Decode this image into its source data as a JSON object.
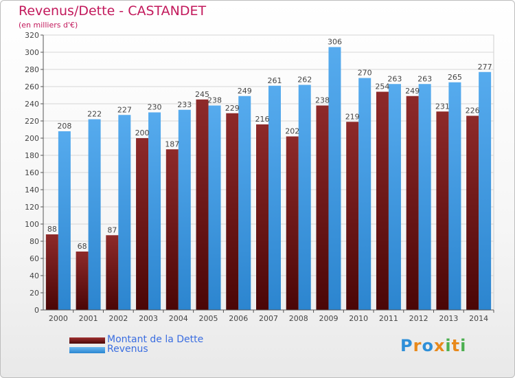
{
  "header": {
    "title": "Revenus/Dette - CASTANDET",
    "subtitle": "(en milliers d'€)"
  },
  "chart_data": {
    "type": "bar",
    "categories": [
      "2000",
      "2001",
      "2002",
      "2003",
      "2004",
      "2005",
      "2006",
      "2007",
      "2008",
      "2009",
      "2010",
      "2011",
      "2012",
      "2013",
      "2014"
    ],
    "series": [
      {
        "name": "Montant de la Dette",
        "color": "#7b1a1a",
        "values": [
          88,
          68,
          87,
          200,
          187,
          245,
          229,
          216,
          202,
          238,
          219,
          254,
          249,
          231,
          226
        ]
      },
      {
        "name": "Revenus",
        "color": "#3d9be6",
        "values": [
          208,
          222,
          227,
          230,
          233,
          238,
          249,
          261,
          262,
          306,
          270,
          263,
          263,
          265,
          277
        ]
      }
    ],
    "ylim": [
      0,
      320
    ],
    "yticks": [
      0,
      20,
      40,
      60,
      80,
      100,
      120,
      140,
      160,
      180,
      200,
      220,
      240,
      260,
      280,
      300,
      320
    ],
    "grid": true,
    "legend_position": "bottom-left"
  },
  "logo": {
    "letters": [
      "P",
      "r",
      "o",
      "x",
      "i",
      "t",
      "i"
    ],
    "colors": [
      "#2e8fd8",
      "#e8891c",
      "#2e8fd8",
      "#e8891c",
      "#4caf50",
      "#e8891c",
      "#4caf50"
    ]
  }
}
